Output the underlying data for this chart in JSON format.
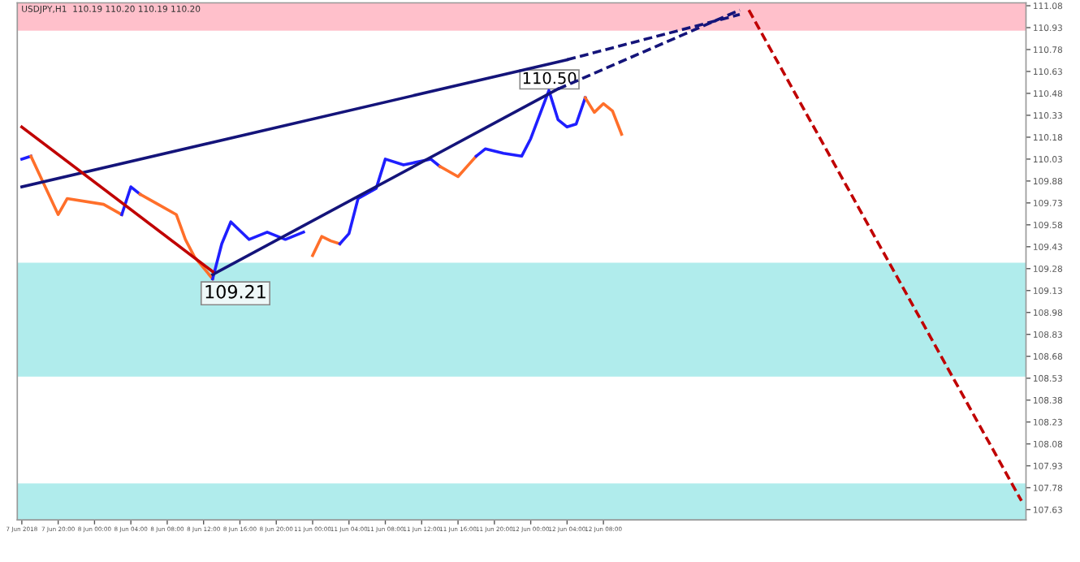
{
  "chart_data": {
    "type": "line",
    "title": "USDJPY,H1  110.19 110.20 110.19 110.20",
    "categories": [
      "7 Jun 2018",
      null,
      null,
      null,
      "7 Jun 20:00",
      null,
      null,
      null,
      "8 Jun 00:00",
      null,
      null,
      null,
      "8 Jun 04:00",
      null,
      null,
      null,
      "8 Jun 08:00",
      null,
      null,
      null,
      "8 Jun 12:00",
      null,
      null,
      null,
      "8 Jun 16:00",
      null,
      null,
      null,
      "8 Jun 20:00",
      null,
      null,
      null,
      "11 Jun 00:00",
      null,
      null,
      null,
      "11 Jun 04:00",
      null,
      null,
      null,
      "11 Jun 08:00",
      null,
      null,
      null,
      "11 Jun 12:00",
      null,
      null,
      null,
      "11 Jun 16:00",
      null,
      null,
      null,
      "11 Jun 20:00",
      null,
      null,
      null,
      "12 Jun 00:00",
      null,
      null,
      null,
      "12 Jun 04:00",
      null,
      null,
      null,
      "12 Jun 08:00",
      null,
      null,
      null,
      null,
      null,
      null,
      null,
      null,
      null,
      null,
      null,
      null,
      null,
      null,
      null,
      null,
      null,
      null,
      null,
      null,
      null,
      null,
      null,
      null,
      null,
      null,
      null,
      null,
      null,
      null,
      null,
      null,
      null,
      null,
      null,
      null,
      null,
      null,
      null,
      null,
      null,
      null,
      null,
      null,
      null,
      null
    ],
    "ylim": [
      107.56,
      111.1
    ],
    "yticks": [
      111.08,
      110.93,
      110.78,
      110.63,
      110.48,
      110.33,
      110.18,
      110.03,
      109.88,
      109.73,
      109.58,
      109.43,
      109.28,
      109.13,
      108.98,
      108.83,
      108.68,
      108.53,
      108.38,
      108.23,
      108.08,
      107.93,
      107.78,
      107.63
    ],
    "grid": false,
    "marker": "none",
    "bands": [
      {
        "axis": "y",
        "from": 110.91,
        "to": 111.1,
        "color": "#ffc0cb"
      },
      {
        "axis": "y",
        "from": 108.54,
        "to": 109.32,
        "color": "#b0ecec"
      },
      {
        "axis": "y",
        "from": 107.56,
        "to": 107.81,
        "color": "#b0ecec"
      }
    ],
    "series": [
      {
        "color": "#1f1fff",
        "line_style": "solid",
        "values": [
          110.03,
          110.05,
          null,
          null,
          null,
          null,
          null,
          null,
          null,
          null,
          null,
          null,
          null,
          null,
          null,
          null,
          null,
          null,
          null,
          null,
          null,
          null,
          null,
          null,
          null,
          null,
          null,
          null,
          null,
          null,
          null,
          null,
          null,
          null,
          null,
          null,
          null,
          null,
          null,
          null,
          null,
          null,
          null,
          null,
          null,
          null,
          null,
          null,
          null,
          null,
          null,
          null,
          null,
          null,
          null,
          null,
          null,
          null,
          null,
          null,
          null,
          null,
          null,
          null,
          null,
          null,
          null,
          null,
          null,
          null,
          null,
          null,
          null,
          null,
          null,
          null,
          null,
          null,
          null,
          null,
          null,
          null,
          null,
          null,
          null,
          null,
          null,
          null,
          null,
          null,
          null,
          null,
          null,
          null,
          null,
          null,
          null,
          null,
          null,
          null,
          null,
          null,
          null,
          null,
          null,
          null,
          null,
          null,
          null,
          null,
          null
        ]
      },
      {
        "color": "#ff6f2a",
        "line_style": "solid",
        "values": [
          null,
          110.05,
          null,
          null,
          109.65,
          109.76,
          null,
          null,
          null,
          109.72,
          null,
          109.65,
          null,
          null,
          null,
          null,
          null,
          null,
          null,
          null,
          null,
          null,
          null,
          null,
          null,
          null,
          null,
          null,
          null,
          null,
          null,
          null,
          null,
          null,
          null,
          null,
          null,
          null,
          null,
          null,
          null,
          null,
          null,
          null,
          null,
          null,
          null,
          null,
          null,
          null,
          null,
          null,
          null,
          null,
          null,
          null,
          null,
          null,
          null,
          null,
          null,
          null,
          null,
          null,
          null,
          null,
          null,
          null,
          null,
          null,
          null,
          null,
          null,
          null,
          null,
          null,
          null,
          null,
          null,
          null,
          null,
          null,
          null,
          null,
          null,
          null,
          null,
          null,
          null,
          null,
          null,
          null,
          null,
          null,
          null,
          null,
          null,
          null,
          null,
          null,
          null,
          null,
          null,
          null,
          null,
          null,
          null,
          null,
          null,
          null,
          null
        ]
      },
      {
        "color": "#1f1fff",
        "line_style": "solid",
        "values": [
          null,
          null,
          null,
          null,
          null,
          null,
          null,
          null,
          null,
          null,
          null,
          109.65,
          109.84,
          109.79,
          null,
          null,
          null,
          null,
          null,
          null,
          null,
          null,
          null,
          null,
          null,
          null,
          null,
          null,
          null,
          null,
          null,
          null,
          null,
          null,
          null,
          null,
          null,
          null,
          null,
          null,
          null,
          null,
          null,
          null,
          null,
          null,
          null,
          null,
          null,
          null,
          null,
          null,
          null,
          null,
          null,
          null,
          null,
          null,
          null,
          null,
          null,
          null,
          null,
          null,
          null,
          null,
          null,
          null,
          null,
          null,
          null,
          null,
          null,
          null,
          null,
          null,
          null,
          null,
          null,
          null,
          null,
          null,
          null,
          null,
          null,
          null,
          null,
          null,
          null,
          null,
          null,
          null,
          null,
          null,
          null,
          null,
          null,
          null,
          null,
          null,
          null,
          null,
          null,
          null,
          null,
          null,
          null,
          null,
          null,
          null,
          null
        ]
      },
      {
        "color": "#ff6f2a",
        "line_style": "solid",
        "values": [
          null,
          null,
          null,
          null,
          null,
          null,
          null,
          null,
          null,
          null,
          null,
          null,
          null,
          109.79,
          null,
          109.72,
          null,
          109.65,
          109.48,
          109.36,
          null,
          109.21,
          null,
          null,
          null,
          null,
          null,
          null,
          null,
          null,
          null,
          null,
          null,
          null,
          null,
          null,
          null,
          null,
          null,
          null,
          null,
          null,
          null,
          null,
          null,
          null,
          null,
          null,
          null,
          null,
          null,
          null,
          null,
          null,
          null,
          null,
          null,
          null,
          null,
          null,
          null,
          null,
          null,
          null,
          null,
          null,
          null,
          null,
          null,
          null,
          null,
          null,
          null,
          null,
          null,
          null,
          null,
          null,
          null,
          null,
          null,
          null,
          null,
          null,
          null,
          null,
          null,
          null,
          null,
          null,
          null,
          null,
          null,
          null,
          null,
          null,
          null,
          null,
          null,
          null,
          null,
          null,
          null,
          null,
          null,
          null,
          null,
          null,
          null,
          null,
          null
        ]
      },
      {
        "color": "#1f1fff",
        "line_style": "solid",
        "values": [
          null,
          null,
          null,
          null,
          null,
          null,
          null,
          null,
          null,
          null,
          null,
          null,
          null,
          null,
          null,
          null,
          null,
          null,
          null,
          null,
          null,
          109.21,
          109.45,
          109.6,
          null,
          109.48,
          null,
          109.53,
          null,
          109.48,
          null,
          109.53,
          null,
          null,
          null,
          null,
          null,
          null,
          null,
          null,
          null,
          null,
          null,
          null,
          null,
          null,
          null,
          null,
          null,
          null,
          null,
          null,
          null,
          null,
          null,
          null,
          null,
          null,
          null,
          null,
          null,
          null,
          null,
          null,
          null,
          null,
          null,
          null,
          null,
          null,
          null,
          null,
          null,
          null,
          null,
          null,
          null,
          null,
          null,
          null,
          null,
          null,
          null,
          null,
          null,
          null,
          null,
          null,
          null,
          null,
          null,
          null,
          null,
          null,
          null,
          null,
          null,
          null,
          null,
          null,
          null,
          null,
          null,
          null,
          null,
          null,
          null,
          null,
          null,
          null,
          null
        ]
      },
      {
        "color": "#ff6f2a",
        "line_style": "solid",
        "values": [
          null,
          null,
          null,
          null,
          null,
          null,
          null,
          null,
          null,
          null,
          null,
          null,
          null,
          null,
          null,
          null,
          null,
          null,
          null,
          null,
          null,
          null,
          null,
          null,
          null,
          null,
          null,
          null,
          null,
          null,
          null,
          null,
          109.37,
          109.5,
          109.47,
          109.45,
          null,
          null,
          null,
          null,
          null,
          null,
          null,
          null,
          null,
          null,
          null,
          null,
          null,
          null,
          null,
          null,
          null,
          null,
          null,
          null,
          null,
          null,
          null,
          null,
          null,
          null,
          null,
          null,
          null,
          null,
          null,
          null,
          null,
          null,
          null,
          null,
          null,
          null,
          null,
          null,
          null,
          null,
          null,
          null,
          null,
          null,
          null,
          null,
          null,
          null,
          null,
          null,
          null,
          null,
          null,
          null,
          null,
          null,
          null,
          null,
          null,
          null,
          null,
          null,
          null,
          null,
          null,
          null,
          null,
          null,
          null,
          null,
          null,
          null,
          null
        ]
      },
      {
        "color": "#1f1fff",
        "line_style": "solid",
        "values": [
          null,
          null,
          null,
          null,
          null,
          null,
          null,
          null,
          null,
          null,
          null,
          null,
          null,
          null,
          null,
          null,
          null,
          null,
          null,
          null,
          null,
          null,
          null,
          null,
          null,
          null,
          null,
          null,
          null,
          null,
          null,
          null,
          null,
          null,
          null,
          109.45,
          109.52,
          109.76,
          null,
          109.83,
          110.03,
          null,
          109.99,
          null,
          null,
          110.03,
          109.98,
          null,
          null,
          null,
          null,
          null,
          null,
          null,
          null,
          null,
          null,
          null,
          null,
          null,
          null,
          null,
          null,
          null,
          null,
          null,
          null,
          null,
          null,
          null,
          null,
          null,
          null,
          null,
          null,
          null,
          null,
          null,
          null,
          null,
          null,
          null,
          null,
          null,
          null,
          null,
          null,
          null,
          null,
          null,
          null,
          null,
          null,
          null,
          null,
          null,
          null,
          null,
          null,
          null,
          null,
          null,
          null,
          null,
          null,
          null,
          null,
          null,
          null,
          null,
          null
        ]
      },
      {
        "color": "#ff6f2a",
        "line_style": "solid",
        "values": [
          null,
          null,
          null,
          null,
          null,
          null,
          null,
          null,
          null,
          null,
          null,
          null,
          null,
          null,
          null,
          null,
          null,
          null,
          null,
          null,
          null,
          null,
          null,
          null,
          null,
          null,
          null,
          null,
          null,
          null,
          null,
          null,
          null,
          null,
          null,
          null,
          null,
          null,
          null,
          null,
          null,
          null,
          null,
          null,
          null,
          null,
          109.98,
          null,
          109.91,
          109.98,
          110.05,
          null,
          null,
          null,
          null,
          null,
          null,
          null,
          null,
          null,
          null,
          null,
          null,
          null,
          null,
          null,
          null,
          null,
          null,
          null,
          null,
          null,
          null,
          null,
          null,
          null,
          null,
          null,
          null,
          null,
          null,
          null,
          null,
          null,
          null,
          null,
          null,
          null,
          null,
          null,
          null,
          null,
          null,
          null,
          null,
          null,
          null,
          null,
          null,
          null,
          null,
          null,
          null,
          null,
          null,
          null,
          null,
          null,
          null,
          null,
          null
        ]
      },
      {
        "color": "#1f1fff",
        "line_style": "solid",
        "values": [
          null,
          null,
          null,
          null,
          null,
          null,
          null,
          null,
          null,
          null,
          null,
          null,
          null,
          null,
          null,
          null,
          null,
          null,
          null,
          null,
          null,
          null,
          null,
          null,
          null,
          null,
          null,
          null,
          null,
          null,
          null,
          null,
          null,
          null,
          null,
          null,
          null,
          null,
          null,
          null,
          null,
          null,
          null,
          null,
          null,
          null,
          null,
          null,
          null,
          null,
          110.05,
          110.1,
          null,
          110.07,
          null,
          110.05,
          110.17,
          null,
          110.5,
          110.3,
          110.25,
          110.27,
          110.45,
          null,
          null,
          null,
          null,
          null,
          null,
          null,
          null,
          null,
          null,
          null,
          null,
          null,
          null,
          null,
          null,
          null,
          null,
          null,
          null,
          null,
          null,
          null,
          null,
          null,
          null,
          null,
          null,
          null,
          null,
          null,
          null,
          null,
          null,
          null,
          null,
          null,
          null,
          null,
          null,
          null,
          null,
          null,
          null,
          null,
          null,
          null,
          null
        ]
      },
      {
        "color": "#ff6f2a",
        "line_style": "solid",
        "values": [
          null,
          null,
          null,
          null,
          null,
          null,
          null,
          null,
          null,
          null,
          null,
          null,
          null,
          null,
          null,
          null,
          null,
          null,
          null,
          null,
          null,
          null,
          null,
          null,
          null,
          null,
          null,
          null,
          null,
          null,
          null,
          null,
          null,
          null,
          null,
          null,
          null,
          null,
          null,
          null,
          null,
          null,
          null,
          null,
          null,
          null,
          null,
          null,
          null,
          null,
          null,
          null,
          null,
          null,
          null,
          null,
          null,
          null,
          null,
          null,
          null,
          null,
          110.45,
          110.35,
          110.41,
          110.36,
          110.2,
          null,
          null,
          null,
          null,
          null,
          null,
          null,
          null,
          null,
          null,
          null,
          null,
          null,
          null,
          null,
          null,
          null,
          null,
          null,
          null,
          null,
          null,
          null,
          null,
          null,
          null,
          null,
          null,
          null,
          null,
          null,
          null,
          null,
          null,
          null,
          null,
          null,
          null,
          null,
          null,
          null,
          null,
          null,
          null
        ]
      },
      {
        "color": "#14147a",
        "line_style": "solid",
        "values": [
          109.84,
          null,
          null,
          null,
          null,
          null,
          null,
          null,
          null,
          null,
          null,
          null,
          null,
          null,
          null,
          null,
          null,
          null,
          null,
          null,
          null,
          null,
          null,
          null,
          null,
          null,
          null,
          null,
          null,
          null,
          null,
          null,
          null,
          null,
          null,
          null,
          null,
          null,
          null,
          null,
          null,
          null,
          null,
          null,
          null,
          null,
          null,
          null,
          null,
          null,
          null,
          null,
          null,
          null,
          null,
          null,
          null,
          null,
          null,
          null,
          110.71,
          null,
          null,
          null,
          null,
          null,
          null,
          null,
          null,
          null,
          null,
          null,
          null,
          null,
          null,
          null,
          null,
          null,
          null,
          null,
          null,
          null,
          null,
          null,
          null,
          null,
          null,
          null,
          null,
          null,
          null,
          null,
          null,
          null,
          null,
          null,
          null,
          null,
          null,
          null,
          null,
          null,
          null,
          null,
          null,
          null,
          null,
          null,
          null,
          null,
          null
        ]
      },
      {
        "color": "#14147a",
        "line_style": "dashed",
        "values": [
          null,
          null,
          null,
          null,
          null,
          null,
          null,
          null,
          null,
          null,
          null,
          null,
          null,
          null,
          null,
          null,
          null,
          null,
          null,
          null,
          null,
          null,
          null,
          null,
          null,
          null,
          null,
          null,
          null,
          null,
          null,
          null,
          null,
          null,
          null,
          null,
          null,
          null,
          null,
          null,
          null,
          null,
          null,
          null,
          null,
          null,
          null,
          null,
          null,
          null,
          null,
          null,
          null,
          null,
          null,
          null,
          null,
          null,
          null,
          null,
          110.71,
          null,
          null,
          null,
          null,
          null,
          null,
          null,
          null,
          null,
          null,
          null,
          null,
          null,
          null,
          null,
          null,
          null,
          null,
          111.02,
          null,
          null,
          null,
          null,
          null,
          null,
          null,
          null,
          null,
          null,
          null,
          null,
          null,
          null,
          null,
          null,
          null,
          null,
          null,
          null,
          null,
          null,
          null,
          null,
          null,
          null,
          null,
          null,
          null,
          null,
          null
        ]
      },
      {
        "color": "#14147a",
        "line_style": "solid",
        "values": [
          null,
          null,
          null,
          null,
          null,
          null,
          null,
          null,
          null,
          null,
          null,
          null,
          null,
          null,
          null,
          null,
          null,
          null,
          null,
          null,
          null,
          109.24,
          null,
          null,
          null,
          null,
          null,
          null,
          null,
          null,
          null,
          null,
          null,
          null,
          null,
          null,
          null,
          null,
          null,
          null,
          null,
          null,
          null,
          null,
          null,
          null,
          null,
          null,
          null,
          null,
          null,
          null,
          null,
          null,
          null,
          null,
          null,
          null,
          null,
          110.51,
          null,
          null,
          null,
          null,
          null,
          null,
          null,
          null,
          null,
          null,
          null,
          null,
          null,
          null,
          null,
          null,
          null,
          null,
          null,
          null,
          null,
          null,
          null,
          null,
          null,
          null,
          null,
          null,
          null,
          null,
          null,
          null,
          null,
          null,
          null,
          null,
          null,
          null,
          null,
          null,
          null,
          null,
          null,
          null,
          null,
          null,
          null,
          null,
          null,
          null,
          null
        ]
      },
      {
        "color": "#14147a",
        "line_style": "dashed",
        "values": [
          null,
          null,
          null,
          null,
          null,
          null,
          null,
          null,
          null,
          null,
          null,
          null,
          null,
          null,
          null,
          null,
          null,
          null,
          null,
          null,
          null,
          null,
          null,
          null,
          null,
          null,
          null,
          null,
          null,
          null,
          null,
          null,
          null,
          null,
          null,
          null,
          null,
          null,
          null,
          null,
          null,
          null,
          null,
          null,
          null,
          null,
          null,
          null,
          null,
          null,
          null,
          null,
          null,
          null,
          null,
          null,
          null,
          null,
          null,
          110.51,
          null,
          null,
          null,
          null,
          null,
          null,
          null,
          null,
          null,
          null,
          null,
          null,
          null,
          null,
          null,
          null,
          null,
          null,
          null,
          111.05,
          null,
          null,
          null,
          null,
          null,
          null,
          null,
          null,
          null,
          null,
          null,
          null,
          null,
          null,
          null,
          null,
          null,
          null,
          null,
          null,
          null,
          null,
          null,
          null,
          null,
          null,
          null,
          null,
          null,
          null,
          null
        ]
      },
      {
        "color": "#c00000",
        "line_style": "solid",
        "values": [
          110.25,
          null,
          null,
          null,
          null,
          null,
          null,
          null,
          null,
          null,
          null,
          null,
          null,
          null,
          null,
          null,
          null,
          null,
          null,
          null,
          null,
          109.26,
          null,
          null,
          null,
          null,
          null,
          null,
          null,
          null,
          null,
          null,
          null,
          null,
          null,
          null,
          null,
          null,
          null,
          null,
          null,
          null,
          null,
          null,
          null,
          null,
          null,
          null,
          null,
          null,
          null,
          null,
          null,
          null,
          null,
          null,
          null,
          null,
          null,
          null,
          null,
          null,
          null,
          null,
          null,
          null,
          null,
          null,
          null,
          null,
          null,
          null,
          null,
          null,
          null,
          null,
          null,
          null,
          null,
          null,
          null,
          null,
          null,
          null,
          null,
          null,
          null,
          null,
          null,
          null,
          null,
          null,
          null,
          null,
          null,
          null,
          null,
          null,
          null,
          null,
          null,
          null,
          null,
          null,
          null,
          null,
          null,
          null,
          null,
          null,
          null
        ]
      },
      {
        "color": "#c00000",
        "line_style": "dashed",
        "values": [
          null,
          null,
          null,
          null,
          null,
          null,
          null,
          null,
          null,
          null,
          null,
          null,
          null,
          null,
          null,
          null,
          null,
          null,
          null,
          null,
          null,
          null,
          null,
          null,
          null,
          null,
          null,
          null,
          null,
          null,
          null,
          null,
          null,
          null,
          null,
          null,
          null,
          null,
          null,
          null,
          null,
          null,
          null,
          null,
          null,
          null,
          null,
          null,
          null,
          null,
          null,
          null,
          null,
          null,
          null,
          null,
          null,
          null,
          null,
          null,
          null,
          null,
          null,
          null,
          null,
          null,
          null,
          null,
          null,
          null,
          null,
          null,
          null,
          null,
          null,
          null,
          null,
          null,
          null,
          null,
          111.05,
          null,
          null,
          null,
          null,
          null,
          null,
          null,
          null,
          null,
          null,
          null,
          null,
          null,
          null,
          null,
          null,
          null,
          null,
          null,
          null,
          null,
          null,
          null,
          null,
          null,
          null,
          null,
          null,
          null,
          107.69
        ]
      }
    ],
    "annotations": [
      "109.21",
      {
        "text": "110.50",
        "y": 110.5
      }
    ]
  }
}
